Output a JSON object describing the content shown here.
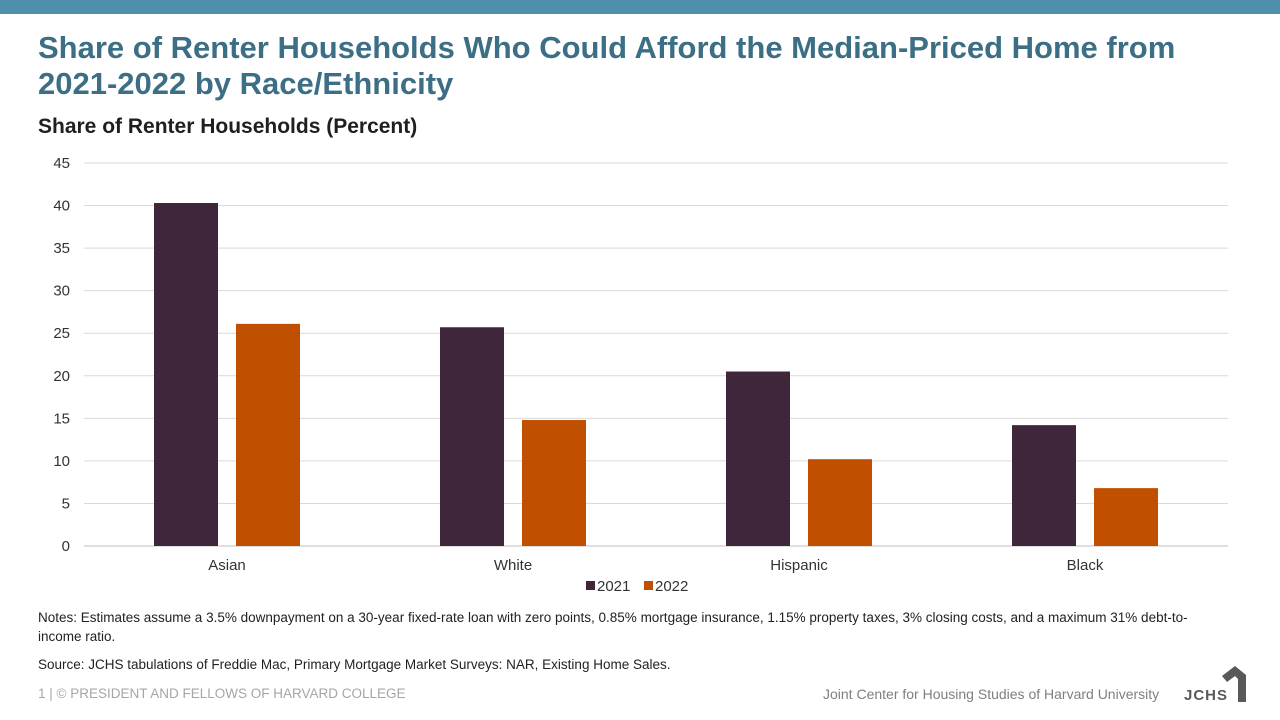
{
  "title": "Share of Renter Households Who Could Afford the Median-Priced Home from 2021-2022 by Race/Ethnicity",
  "colors": {
    "topbar": "#4f8fab",
    "title": "#3c6e86",
    "series_2021": "#40263a",
    "series_2022": "#c04f00"
  },
  "chart_data": {
    "type": "bar",
    "title": "Share of Renter Households (Percent)",
    "xlabel": "",
    "ylabel": "Share of Renter Households (Percent)",
    "categories": [
      "Asian",
      "White",
      "Hispanic",
      "Black"
    ],
    "series": [
      {
        "name": "2021",
        "values": [
          40.3,
          25.7,
          20.5,
          14.2
        ]
      },
      {
        "name": "2022",
        "values": [
          26.1,
          14.8,
          10.2,
          6.8
        ]
      }
    ],
    "ylim": [
      0,
      45
    ],
    "yticks": [
      0,
      5,
      10,
      15,
      20,
      25,
      30,
      35,
      40,
      45
    ],
    "grid": true,
    "legend": "bottom-center"
  },
  "notes": "Notes: Estimates assume a 3.5% downpayment on a 30-year fixed-rate loan with zero points, 0.85% mortgage insurance, 1.15% property taxes, 3% closing costs, and a maximum 31% debt-to-income ratio.",
  "source": "Source: JCHS tabulations of Freddie Mac, Primary Mortgage Market Surveys: NAR, Existing Home Sales.",
  "footer": {
    "left": "1 | © PRESIDENT AND FELLOWS OF HARVARD COLLEGE",
    "right": "Joint Center for Housing Studies of Harvard University",
    "logo_text": "JCHS"
  }
}
